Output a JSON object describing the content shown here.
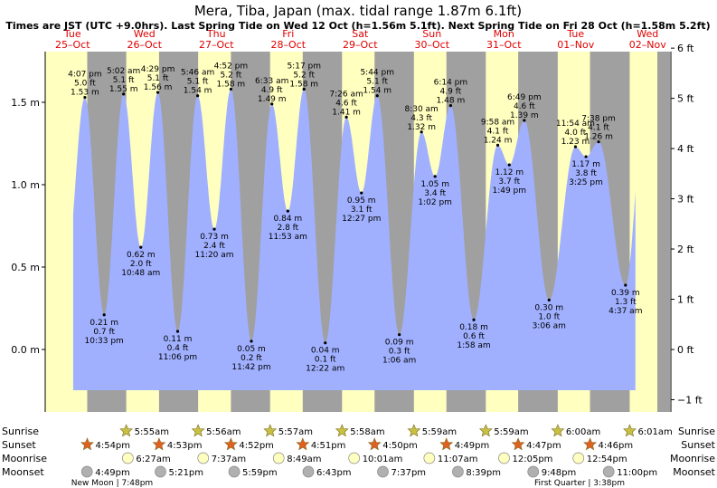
{
  "title": "Mera, Tiba, Japan (max. tidal range 1.87m 6.1ft)",
  "subtitle": "Times are JST (UTC +9.0hrs). Last Spring Tide on Wed 12 Oct (h=1.56m 5.1ft). Next Spring Tide on Fri 28 Oct (h=1.58m 5.2ft)",
  "colors": {
    "day": "#ffffc0",
    "night": "#a0a0a0",
    "water": "#a0b0ff",
    "date_text": "#e00000",
    "sun_icon": "#c8c040",
    "sunset_icon": "#e06020",
    "moonrise_icon": "#ffffc0",
    "moonset_icon": "#b0b0b0"
  },
  "days": [
    {
      "dow": "Tue",
      "date": "25–Oct"
    },
    {
      "dow": "Wed",
      "date": "26–Oct"
    },
    {
      "dow": "Thu",
      "date": "27–Oct"
    },
    {
      "dow": "Fri",
      "date": "28–Oct"
    },
    {
      "dow": "Sat",
      "date": "29–Oct"
    },
    {
      "dow": "Sun",
      "date": "30–Oct"
    },
    {
      "dow": "Mon",
      "date": "31–Oct"
    },
    {
      "dow": "Tue",
      "date": "01–Nov"
    },
    {
      "dow": "Wed",
      "date": "02–Nov"
    }
  ],
  "chart_data": {
    "type": "area",
    "title": "Mera, Tiba, Japan (max. tidal range 1.87m 6.1ft)",
    "time_start": "25-Oct 12:00",
    "x_unit": "hours",
    "ylim_m": [
      -0.36,
      1.94
    ],
    "y_left_ticks": [
      "−0.0 m",
      "0.0 m",
      "0.5 m",
      "1.0 m",
      "1.5 m"
    ],
    "y_left_tick_values": [
      0.0,
      0.5,
      1.0,
      1.5
    ],
    "y_left_tick_labels": [
      "0.0 m",
      "0.5 m",
      "1.0 m",
      "1.5 m"
    ],
    "y_right_tick_values_ft": [
      -1,
      0,
      1,
      2,
      3,
      4,
      5,
      6
    ],
    "y_right_tick_labels": [
      "−1 ft",
      "0 ft",
      "1 ft",
      "2 ft",
      "3 ft",
      "4 ft",
      "5 ft",
      "6 ft"
    ],
    "tides": [
      {
        "t": "4:07 pm",
        "ft": "5.0 ft",
        "m": "1.53 m",
        "v": 1.53,
        "h": 16.12,
        "hi": true
      },
      {
        "t": "10:33 pm",
        "ft": "0.7 ft",
        "m": "0.21 m",
        "v": 0.21,
        "h": 22.55,
        "hi": false
      },
      {
        "t": "5:02 am",
        "ft": "5.1 ft",
        "m": "1.55 m",
        "v": 1.55,
        "h": 29.03,
        "hi": true
      },
      {
        "t": "10:48 am",
        "ft": "2.0 ft",
        "m": "0.62 m",
        "v": 0.62,
        "h": 34.8,
        "hi": false
      },
      {
        "t": "4:29 pm",
        "ft": "5.1 ft",
        "m": "1.56 m",
        "v": 1.56,
        "h": 40.48,
        "hi": true
      },
      {
        "t": "11:06 pm",
        "ft": "0.4 ft",
        "m": "0.11 m",
        "v": 0.11,
        "h": 47.1,
        "hi": false
      },
      {
        "t": "5:46 am",
        "ft": "5.1 ft",
        "m": "1.54 m",
        "v": 1.54,
        "h": 53.77,
        "hi": true
      },
      {
        "t": "11:20 am",
        "ft": "2.4 ft",
        "m": "0.73 m",
        "v": 0.73,
        "h": 59.33,
        "hi": false
      },
      {
        "t": "4:52 pm",
        "ft": "5.2 ft",
        "m": "1.58 m",
        "v": 1.58,
        "h": 64.87,
        "hi": true
      },
      {
        "t": "11:42 pm",
        "ft": "0.2 ft",
        "m": "0.05 m",
        "v": 0.05,
        "h": 71.7,
        "hi": false
      },
      {
        "t": "6:33 am",
        "ft": "4.9 ft",
        "m": "1.49 m",
        "v": 1.49,
        "h": 78.55,
        "hi": true
      },
      {
        "t": "11:53 am",
        "ft": "2.8 ft",
        "m": "0.84 m",
        "v": 0.84,
        "h": 83.88,
        "hi": false
      },
      {
        "t": "5:17 pm",
        "ft": "5.2 ft",
        "m": "1.58 m",
        "v": 1.58,
        "h": 89.28,
        "hi": true
      },
      {
        "t": "12:22 am",
        "ft": "0.1 ft",
        "m": "0.04 m",
        "v": 0.04,
        "h": 96.37,
        "hi": false
      },
      {
        "t": "7:26 am",
        "ft": "4.6 ft",
        "m": "1.41 m",
        "v": 1.41,
        "h": 103.43,
        "hi": true
      },
      {
        "t": "12:27 pm",
        "ft": "3.1 ft",
        "m": "0.95 m",
        "v": 0.95,
        "h": 108.45,
        "hi": false
      },
      {
        "t": "5:44 pm",
        "ft": "5.1 ft",
        "m": "1.54 m",
        "v": 1.54,
        "h": 113.73,
        "hi": true
      },
      {
        "t": "1:06 am",
        "ft": "0.3 ft",
        "m": "0.09 m",
        "v": 0.09,
        "h": 121.1,
        "hi": false
      },
      {
        "t": "8:30 am",
        "ft": "4.3 ft",
        "m": "1.32 m",
        "v": 1.32,
        "h": 128.5,
        "hi": true
      },
      {
        "t": "1:02 pm",
        "ft": "3.4 ft",
        "m": "1.05 m",
        "v": 1.05,
        "h": 133.03,
        "hi": false
      },
      {
        "t": "6:14 pm",
        "ft": "4.9 ft",
        "m": "1.48 m",
        "v": 1.48,
        "h": 138.23,
        "hi": true
      },
      {
        "t": "1:58 am",
        "ft": "0.6 ft",
        "m": "0.18 m",
        "v": 0.18,
        "h": 145.97,
        "hi": false
      },
      {
        "t": "9:58 am",
        "ft": "4.1 ft",
        "m": "1.24 m",
        "v": 1.24,
        "h": 153.97,
        "hi": true
      },
      {
        "t": "1:49 pm",
        "ft": "3.7 ft",
        "m": "1.12 m",
        "v": 1.12,
        "h": 157.82,
        "hi": false
      },
      {
        "t": "6:49 pm",
        "ft": "4.6 ft",
        "m": "1.39 m",
        "v": 1.39,
        "h": 162.82,
        "hi": true
      },
      {
        "t": "3:06 am",
        "ft": "1.0 ft",
        "m": "0.30 m",
        "v": 0.3,
        "h": 171.1,
        "hi": false
      },
      {
        "t": "11:54 am",
        "ft": "4.0 ft",
        "m": "1.23 m",
        "v": 1.23,
        "h": 179.9,
        "hi": true
      },
      {
        "t": "3:25 pm",
        "ft": "3.8 ft",
        "m": "1.17 m",
        "v": 1.17,
        "h": 183.42,
        "hi": false
      },
      {
        "t": "7:38 pm",
        "ft": "4.1 ft",
        "m": "1.26 m",
        "v": 1.26,
        "h": 187.63,
        "hi": true
      },
      {
        "t": "4:37 am",
        "ft": "1.3 ft",
        "m": "0.39 m",
        "v": 0.39,
        "h": 196.62,
        "hi": false
      }
    ]
  },
  "legend_rows": {
    "sunrise": {
      "label": "Sunrise",
      "items": [
        {
          "h": 29.92,
          "t": "5:55am"
        },
        {
          "h": 53.93,
          "t": "5:56am"
        },
        {
          "h": 77.95,
          "t": "5:57am"
        },
        {
          "h": 101.97,
          "t": "5:58am"
        },
        {
          "h": 125.98,
          "t": "5:59am"
        },
        {
          "h": 149.98,
          "t": "5:59am"
        },
        {
          "h": 174.0,
          "t": "6:00am"
        },
        {
          "h": 198.02,
          "t": "6:01am"
        }
      ]
    },
    "sunset": {
      "label": "Sunset",
      "items": [
        {
          "h": 16.9,
          "t": "4:54pm"
        },
        {
          "h": 40.88,
          "t": "4:53pm"
        },
        {
          "h": 64.87,
          "t": "4:52pm"
        },
        {
          "h": 88.85,
          "t": "4:51pm"
        },
        {
          "h": 112.83,
          "t": "4:50pm"
        },
        {
          "h": 136.82,
          "t": "4:49pm"
        },
        {
          "h": 160.78,
          "t": "4:47pm"
        },
        {
          "h": 184.77,
          "t": "4:46pm"
        }
      ]
    },
    "moonrise": {
      "label": "Moonrise",
      "items": [
        {
          "h": 30.45,
          "t": "6:27am"
        },
        {
          "h": 55.62,
          "t": "7:37am"
        },
        {
          "h": 80.82,
          "t": "8:49am"
        },
        {
          "h": 106.02,
          "t": "10:01am"
        },
        {
          "h": 131.12,
          "t": "11:07am"
        },
        {
          "h": 156.08,
          "t": "12:05pm"
        },
        {
          "h": 180.9,
          "t": "12:54pm"
        }
      ]
    },
    "moonset": {
      "label": "Moonset",
      "items": [
        {
          "h": 16.82,
          "t": "4:49pm"
        },
        {
          "h": 41.35,
          "t": "5:21pm"
        },
        {
          "h": 65.98,
          "t": "5:59pm"
        },
        {
          "h": 90.72,
          "t": "6:43pm"
        },
        {
          "h": 115.62,
          "t": "7:37pm"
        },
        {
          "h": 140.65,
          "t": "8:39pm"
        },
        {
          "h": 165.8,
          "t": "9:48pm"
        },
        {
          "h": 191.0,
          "t": "11:00pm"
        }
      ]
    }
  },
  "moon_phases": [
    {
      "label": "New Moon | 7:48pm"
    },
    {
      "label": "First Quarter | 3:38pm"
    }
  ]
}
